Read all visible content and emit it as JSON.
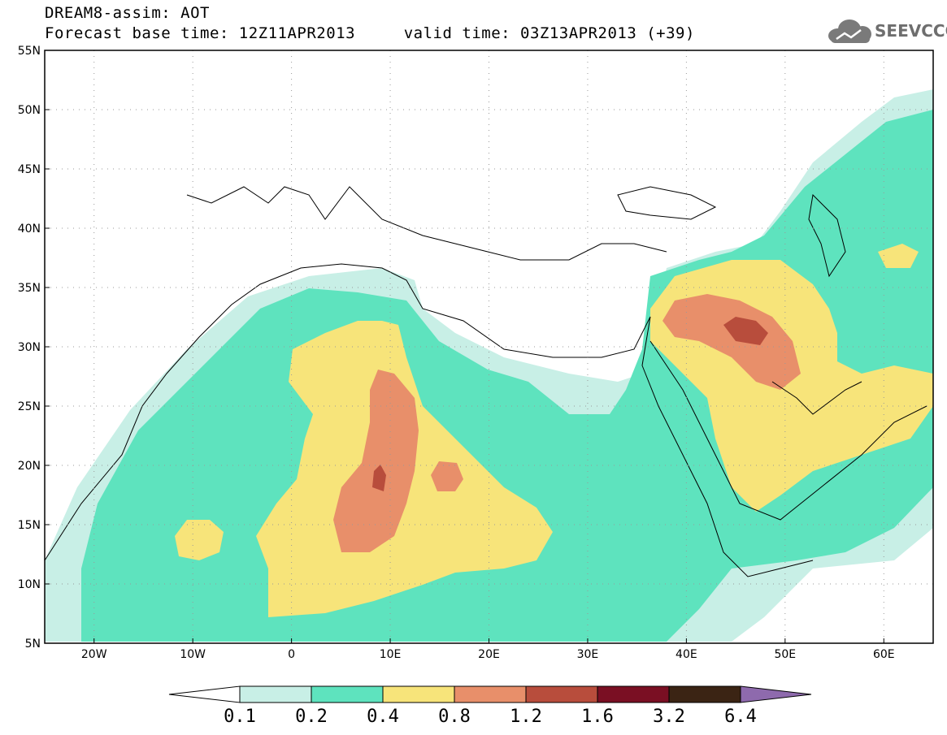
{
  "header": {
    "title": "DREAM8-assim: AOT",
    "subtitle": "Forecast base time: 12Z11APR2013     valid time: 03Z13APR2013 (+39)",
    "logo_text": "SEEVCCC"
  },
  "map": {
    "lat_labels": [
      "55N",
      "50N",
      "45N",
      "40N",
      "35N",
      "30N",
      "25N",
      "20N",
      "15N",
      "10N",
      "5N"
    ],
    "lon_labels": [
      "20W",
      "10W",
      "0",
      "10E",
      "20E",
      "30E",
      "40E",
      "50E",
      "60E"
    ],
    "lat_range": [
      5,
      55
    ],
    "lon_range": [
      -25,
      65
    ],
    "grid": "dotted"
  },
  "colorbar": {
    "labels": [
      "0.1",
      "0.2",
      "0.4",
      "0.8",
      "1.2",
      "1.6",
      "3.2",
      "6.4"
    ],
    "colors": [
      "#ffffff",
      "#c8efe6",
      "#5ee3be",
      "#f7e47a",
      "#e88f6a",
      "#b84d3c",
      "#7a0f23",
      "#3b2414",
      "#8e6aad"
    ]
  }
}
